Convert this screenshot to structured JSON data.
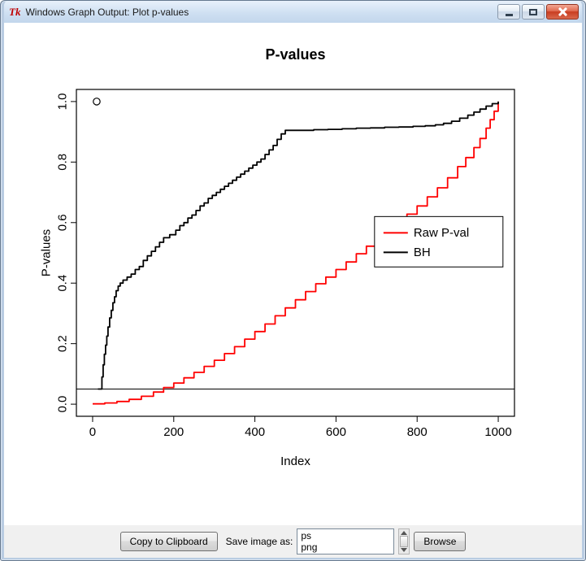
{
  "window": {
    "title": "Windows Graph Output: Plot p-values",
    "icon_text": "Tk",
    "icons": {
      "app": "tk-icon",
      "minimize": "minimize-icon",
      "maximize": "maximize-icon",
      "close": "close-icon",
      "scroll_up": "scroll-up-icon",
      "scroll_down": "scroll-down-icon"
    }
  },
  "toolbar": {
    "copy_button": "Copy to Clipboard",
    "save_label": "Save image as:",
    "format_options": [
      "ps",
      "png"
    ],
    "browse_button": "Browse"
  },
  "chart_data": {
    "type": "line",
    "title": "P-values",
    "xlabel": "Index",
    "ylabel": "P-values",
    "xlim": [
      0,
      1000
    ],
    "ylim": [
      0.0,
      1.0
    ],
    "x_ticks": [
      0,
      200,
      400,
      600,
      800,
      1000
    ],
    "x_tick_labels": [
      "0",
      "200",
      "400",
      "600",
      "800",
      "1000"
    ],
    "y_ticks": [
      0.0,
      0.2,
      0.4,
      0.6,
      0.8,
      1.0
    ],
    "y_tick_labels": [
      "0.0",
      "0.2",
      "0.4",
      "0.6",
      "0.8",
      "1.0"
    ],
    "grid": false,
    "reference_hline_y": 0.05,
    "outlier_point": {
      "x": 10,
      "y": 1.0
    },
    "legend": {
      "position": "right-center",
      "x": 695,
      "y": 0.62,
      "entries": [
        {
          "label": "Raw P-val",
          "color": "#ff0000"
        },
        {
          "label": "BH",
          "color": "#000000"
        }
      ]
    },
    "series": [
      {
        "name": "Raw P-val",
        "color": "#ff0000",
        "points": [
          [
            0,
            0.001
          ],
          [
            30,
            0.004
          ],
          [
            60,
            0.009
          ],
          [
            90,
            0.016
          ],
          [
            120,
            0.026
          ],
          [
            150,
            0.04
          ],
          [
            175,
            0.055
          ],
          [
            200,
            0.07
          ],
          [
            225,
            0.087
          ],
          [
            250,
            0.105
          ],
          [
            275,
            0.125
          ],
          [
            300,
            0.145
          ],
          [
            325,
            0.167
          ],
          [
            350,
            0.19
          ],
          [
            375,
            0.215
          ],
          [
            400,
            0.24
          ],
          [
            425,
            0.265
          ],
          [
            450,
            0.292
          ],
          [
            475,
            0.318
          ],
          [
            500,
            0.345
          ],
          [
            525,
            0.372
          ],
          [
            550,
            0.398
          ],
          [
            575,
            0.42
          ],
          [
            600,
            0.445
          ],
          [
            625,
            0.47
          ],
          [
            650,
            0.497
          ],
          [
            675,
            0.522
          ],
          [
            700,
            0.548
          ],
          [
            725,
            0.573
          ],
          [
            750,
            0.6
          ],
          [
            775,
            0.628
          ],
          [
            800,
            0.655
          ],
          [
            825,
            0.685
          ],
          [
            850,
            0.715
          ],
          [
            875,
            0.748
          ],
          [
            900,
            0.785
          ],
          [
            920,
            0.815
          ],
          [
            940,
            0.848
          ],
          [
            955,
            0.878
          ],
          [
            970,
            0.912
          ],
          [
            980,
            0.94
          ],
          [
            990,
            0.968
          ],
          [
            1000,
            1.0
          ]
        ]
      },
      {
        "name": "BH",
        "color": "#000000",
        "points": [
          [
            13,
            0.05
          ],
          [
            20,
            0.05
          ],
          [
            23,
            0.09
          ],
          [
            26,
            0.13
          ],
          [
            29,
            0.165
          ],
          [
            32,
            0.195
          ],
          [
            35,
            0.225
          ],
          [
            38,
            0.255
          ],
          [
            42,
            0.285
          ],
          [
            46,
            0.31
          ],
          [
            50,
            0.335
          ],
          [
            54,
            0.355
          ],
          [
            58,
            0.375
          ],
          [
            63,
            0.39
          ],
          [
            68,
            0.4
          ],
          [
            75,
            0.41
          ],
          [
            85,
            0.42
          ],
          [
            95,
            0.43
          ],
          [
            105,
            0.445
          ],
          [
            115,
            0.455
          ],
          [
            125,
            0.475
          ],
          [
            135,
            0.49
          ],
          [
            145,
            0.505
          ],
          [
            155,
            0.52
          ],
          [
            165,
            0.535
          ],
          [
            175,
            0.55
          ],
          [
            190,
            0.56
          ],
          [
            205,
            0.575
          ],
          [
            215,
            0.59
          ],
          [
            225,
            0.6
          ],
          [
            235,
            0.615
          ],
          [
            245,
            0.625
          ],
          [
            255,
            0.64
          ],
          [
            265,
            0.655
          ],
          [
            275,
            0.665
          ],
          [
            285,
            0.68
          ],
          [
            295,
            0.69
          ],
          [
            305,
            0.7
          ],
          [
            315,
            0.71
          ],
          [
            325,
            0.72
          ],
          [
            335,
            0.73
          ],
          [
            345,
            0.74
          ],
          [
            355,
            0.75
          ],
          [
            365,
            0.76
          ],
          [
            375,
            0.77
          ],
          [
            385,
            0.78
          ],
          [
            395,
            0.79
          ],
          [
            405,
            0.8
          ],
          [
            415,
            0.81
          ],
          [
            425,
            0.825
          ],
          [
            435,
            0.84
          ],
          [
            445,
            0.855
          ],
          [
            455,
            0.875
          ],
          [
            465,
            0.893
          ],
          [
            475,
            0.905
          ],
          [
            510,
            0.905
          ],
          [
            545,
            0.907
          ],
          [
            580,
            0.908
          ],
          [
            615,
            0.91
          ],
          [
            650,
            0.912
          ],
          [
            685,
            0.913
          ],
          [
            720,
            0.915
          ],
          [
            755,
            0.916
          ],
          [
            790,
            0.918
          ],
          [
            820,
            0.92
          ],
          [
            845,
            0.923
          ],
          [
            865,
            0.928
          ],
          [
            885,
            0.935
          ],
          [
            905,
            0.945
          ],
          [
            925,
            0.955
          ],
          [
            940,
            0.965
          ],
          [
            955,
            0.975
          ],
          [
            970,
            0.985
          ],
          [
            985,
            0.993
          ],
          [
            1000,
            1.0
          ]
        ]
      }
    ]
  }
}
